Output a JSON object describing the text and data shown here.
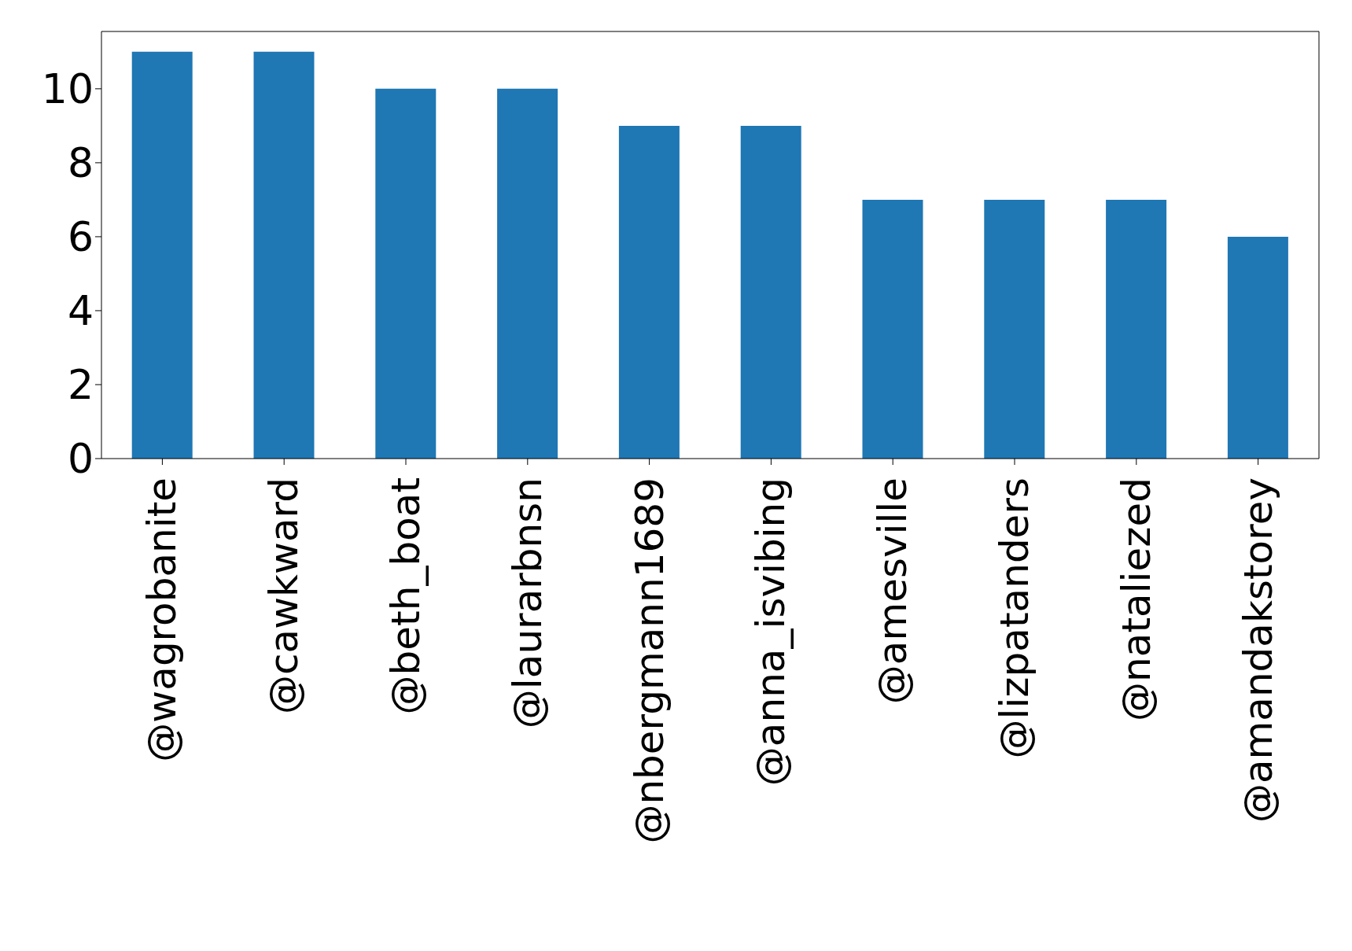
{
  "chart_data": {
    "type": "bar",
    "categories": [
      "@wagrobanite",
      "@cawkward",
      "@beth_boat",
      "@laurarbnsn",
      "@nbergmann1689",
      "@anna_isvibing",
      "@amesville",
      "@lizpatanders",
      "@nataliezed",
      "@amandakstorey"
    ],
    "values": [
      11,
      11,
      10,
      10,
      9,
      9,
      7,
      7,
      7,
      6
    ],
    "color": "#1f77b4",
    "ylim": [
      0,
      11.55
    ],
    "yticks": [
      0,
      2,
      4,
      6,
      8,
      10
    ],
    "grid": false,
    "legend": false
  }
}
